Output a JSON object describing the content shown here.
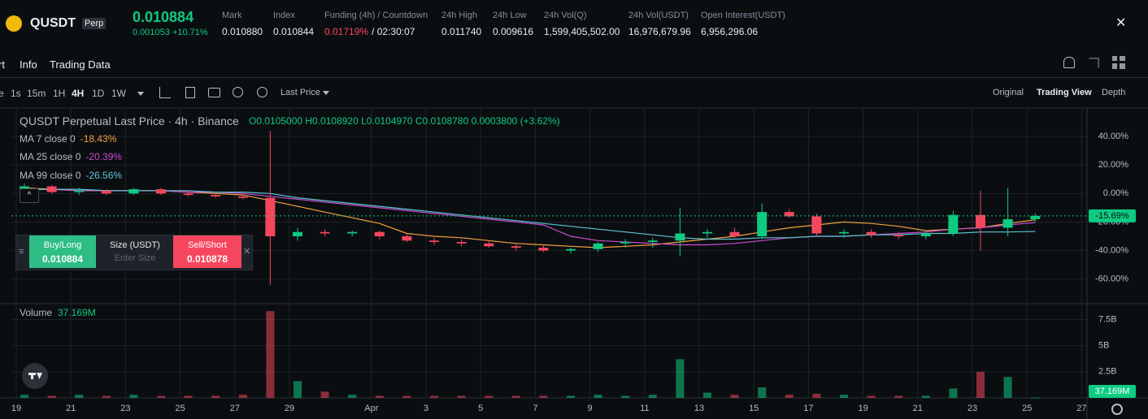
{
  "header": {
    "symbol": "QUSDT",
    "badge": "Perp",
    "price": "0.010884",
    "change": "0.001053",
    "change_pct": "+10.71%",
    "stats": [
      {
        "label": "Mark",
        "value": "0.010880"
      },
      {
        "label": "Index",
        "value": "0.010844"
      },
      {
        "label": "Funding (4h) / Countdown",
        "value": "0.01719%",
        "extra": "/ 02:30:07"
      },
      {
        "label": "24h High",
        "value": "0.011740"
      },
      {
        "label": "24h Low",
        "value": "0.009616"
      },
      {
        "label": "24h Vol(Q)",
        "value": "1,599,405,502.00"
      },
      {
        "label": "24h Vol(USDT)",
        "value": "16,976,679.96"
      },
      {
        "label": "Open Interest(USDT)",
        "value": "6,956,296.06"
      }
    ]
  },
  "tabs": [
    "rt",
    "Info",
    "Trading Data"
  ],
  "toolbar": {
    "lead": "e",
    "intervals": [
      "1s",
      "15m",
      "1H",
      "4H",
      "1D",
      "1W"
    ],
    "price_type": "Last Price",
    "views": [
      "Original",
      "Trading View",
      "Depth"
    ]
  },
  "legend": {
    "title": "QUSDT Perpetual Last Price · 4h · Binance",
    "ohlc": "O0.0105000 H0.0108920 L0.0104970 C0.0108780 0.0003800 (+3.62%)"
  },
  "order_panel": {
    "buy_label": "Buy/Long",
    "buy_price": "0.010884",
    "size_label": "Size (USDT)",
    "size_placeholder": "Enter Size",
    "sell_label": "Sell/Short",
    "sell_price": "0.010878"
  },
  "chart_data": {
    "type": "candlestick",
    "categories": [
      "19",
      null,
      "21",
      null,
      "23",
      null,
      "25",
      null,
      "27",
      null,
      "29",
      null,
      null,
      "Apr",
      null,
      "3",
      null,
      "5",
      null,
      "7",
      null,
      "9",
      null,
      "11",
      null,
      "13",
      null,
      "15",
      null,
      "17",
      null,
      "19",
      null,
      "21",
      null,
      "23",
      null,
      "25",
      null,
      "27"
    ],
    "candles": [
      [
        3,
        7,
        1,
        5
      ],
      [
        5,
        6,
        0,
        1
      ],
      [
        1,
        4,
        -1,
        2
      ],
      [
        2,
        3,
        -1,
        0
      ],
      [
        0,
        4,
        -1,
        3
      ],
      [
        3,
        4,
        -1,
        0
      ],
      [
        0,
        2,
        -2,
        -1
      ],
      [
        -1,
        1,
        -3,
        -2
      ],
      [
        -2,
        0,
        -4,
        -3
      ],
      [
        -3,
        44,
        -64,
        -30
      ],
      [
        -30,
        -24,
        -33,
        -27
      ],
      [
        -27,
        -25,
        -30,
        -28
      ],
      [
        -28,
        -26,
        -30,
        -27
      ],
      [
        -27,
        -26,
        -32,
        -30
      ],
      [
        -30,
        -28,
        -34,
        -33
      ],
      [
        -33,
        -31,
        -36,
        -34
      ],
      [
        -34,
        -32,
        -37,
        -35
      ],
      [
        -35,
        -33,
        -38,
        -37
      ],
      [
        -37,
        -35,
        -40,
        -38
      ],
      [
        -38,
        -36,
        -41,
        -40
      ],
      [
        -40,
        -38,
        -42,
        -39
      ],
      [
        -39,
        -34,
        -41,
        -35
      ],
      [
        -35,
        -32,
        -38,
        -34
      ],
      [
        -34,
        -31,
        -38,
        -33
      ],
      [
        -33,
        -10,
        -44,
        -28
      ],
      [
        -28,
        -25,
        -31,
        -27
      ],
      [
        -27,
        -24,
        -31,
        -30
      ],
      [
        -30,
        -7,
        -32,
        -13
      ],
      [
        -13,
        -11,
        -17,
        -16
      ],
      [
        -16,
        -14,
        -30,
        -28
      ],
      [
        -28,
        -25,
        -31,
        -27
      ],
      [
        -27,
        -25,
        -31,
        -29
      ],
      [
        -29,
        -27,
        -32,
        -30
      ],
      [
        -30,
        -27,
        -32,
        -28
      ],
      [
        -28,
        -12,
        -30,
        -15
      ],
      [
        -15,
        2,
        -40,
        -24
      ],
      [
        -24,
        4,
        -30,
        -18
      ],
      [
        -18,
        -14,
        -20,
        -15.69
      ],
      null,
      null
    ],
    "up_color": "#0ecb81",
    "down_color": "#f6465d",
    "ylim": [
      -75,
      60
    ],
    "yticks": [
      {
        "value": 40,
        "label": "40.00%"
      },
      {
        "value": 20,
        "label": "20.00%"
      },
      {
        "value": 0,
        "label": "0.00%"
      },
      {
        "value": -20,
        "label": "-20.00%"
      },
      {
        "value": -40,
        "label": "-40.00%"
      },
      {
        "value": -60,
        "label": "-60.00%"
      }
    ],
    "grid": true,
    "current_price": {
      "value": -15.69,
      "label": "-15.69%"
    },
    "series": [
      {
        "name": "MA 7 close 0",
        "color": "#f0a33e",
        "current": {
          "value": -18.43,
          "label": "-18.43%"
        },
        "values": [
          4,
          3,
          2,
          2,
          2,
          2,
          1,
          0,
          -1,
          -5,
          -9,
          -13,
          -17,
          -21,
          -28,
          -30,
          -31,
          -33,
          -35,
          -36,
          -37,
          -38,
          -37,
          -36,
          -34,
          -32,
          -30,
          -27,
          -24,
          -22,
          -20,
          -21,
          -23,
          -26,
          -25,
          -24,
          -21,
          -18.43,
          null,
          null
        ]
      },
      {
        "name": "MA 25 close 0",
        "color": "#c84fd0",
        "current": {
          "value": -20.39,
          "label": "-20.39%"
        },
        "values": [
          3,
          3,
          2,
          2,
          2,
          2,
          1,
          1,
          0,
          -2,
          -4,
          -6,
          -8,
          -10,
          -12,
          -14,
          -16,
          -18,
          -20,
          -22,
          -30,
          -33,
          -34,
          -35,
          -36,
          -36,
          -35,
          -33,
          -31,
          -30,
          -30,
          -29,
          -28,
          -27,
          -25,
          -24,
          -22,
          -20.39,
          null,
          null
        ]
      },
      {
        "name": "MA 99 close 0",
        "color": "#5fc4d6",
        "current": {
          "value": -26.56,
          "label": "-26.56%"
        },
        "values": [
          3,
          3,
          3,
          2,
          2,
          2,
          2,
          1,
          1,
          0,
          -3,
          -5,
          -7,
          -9,
          -11,
          -13,
          -15,
          -17,
          -19,
          -21,
          -23,
          -25,
          -27,
          -29,
          -31,
          -32,
          -32,
          -31,
          -31,
          -30,
          -30,
          -29,
          -29,
          -28,
          -28,
          -27,
          -27,
          -26.56,
          null,
          null
        ]
      }
    ],
    "volume": {
      "label": "Volume",
      "values": [
        300000000,
        200000000,
        300000000,
        200000000,
        300000000,
        200000000,
        200000000,
        200000000,
        300000000,
        8300000000,
        1600000000,
        600000000,
        300000000,
        200000000,
        200000000,
        200000000,
        200000000,
        200000000,
        200000000,
        200000000,
        200000000,
        300000000,
        200000000,
        300000000,
        3700000000,
        500000000,
        300000000,
        1000000000,
        300000000,
        400000000,
        300000000,
        200000000,
        200000000,
        200000000,
        900000000,
        2500000000,
        2000000000,
        37169000,
        null,
        null
      ],
      "current": {
        "value": 37169000,
        "label": "37.169M"
      },
      "ylim": [
        0,
        8700000000
      ],
      "yticks": [
        {
          "value": 7500000000,
          "label": "7.5B"
        },
        {
          "value": 5000000000,
          "label": "5B"
        },
        {
          "value": 2500000000,
          "label": "2.5B"
        }
      ]
    }
  }
}
